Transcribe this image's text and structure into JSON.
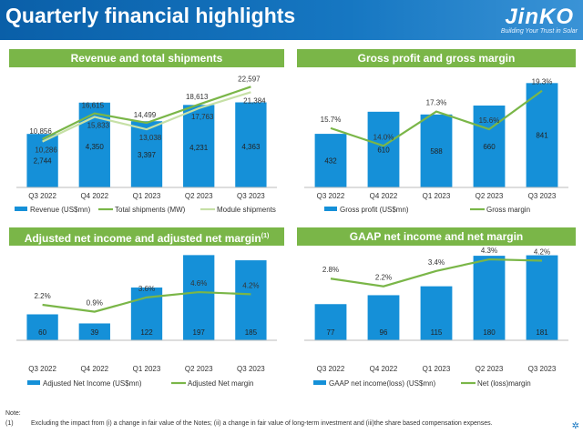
{
  "header": {
    "title": "Quarterly financial highlights",
    "logo": "JinKO",
    "slogan": "Building Your Trust in Solar"
  },
  "colors": {
    "bar": "#1590d8",
    "line": "#7ab648",
    "line_light": "#c6e0a6",
    "panel_title_bg": "#7ab648"
  },
  "note": {
    "heading": "Note:",
    "number": "(1)",
    "text": "Excluding the impact from (i) a change in fair value of the Notes; (ii) a change in fair value of long-term investment and (iii)the share based compensation expenses."
  },
  "chart_data": [
    {
      "type": "bar",
      "title": "Revenue and total shipments",
      "categories": [
        "Q3 2022",
        "Q4 2022",
        "Q1 2023",
        "Q2 2023",
        "Q3 2023"
      ],
      "series": [
        {
          "name": "Revenue (US$mn)",
          "kind": "bar",
          "values": [
            2744,
            4350,
            3397,
            4231,
            4363
          ]
        },
        {
          "name": "Total shipments (MW)",
          "kind": "line",
          "values": [
            10856,
            16615,
            14499,
            18613,
            22597
          ]
        },
        {
          "name": "Module shipments",
          "kind": "line",
          "values": [
            10286,
            15833,
            13038,
            17763,
            21384
          ]
        }
      ]
    },
    {
      "type": "bar",
      "title": "Gross profit and gross margin",
      "categories": [
        "Q3 2022",
        "Q4 2022",
        "Q1 2023",
        "Q2 2023",
        "Q3 2023"
      ],
      "series": [
        {
          "name": "Gross profit (US$mn)",
          "kind": "bar",
          "values": [
            432,
            610,
            588,
            660,
            841
          ]
        },
        {
          "name": "Gross margin",
          "kind": "line",
          "values": [
            15.7,
            14.0,
            17.3,
            15.6,
            19.3
          ],
          "labels": [
            "15.7%",
            "14.0%",
            "17.3%",
            "15.6%",
            "19.3%"
          ]
        }
      ]
    },
    {
      "type": "bar",
      "title": "Adjusted net income and adjusted net margin",
      "title_sup": "(1)",
      "categories": [
        "Q3 2022",
        "Q4 2022",
        "Q1 2023",
        "Q2 2023",
        "Q3 2023"
      ],
      "series": [
        {
          "name": "Adjusted Net Income (US$mn)",
          "kind": "bar",
          "values": [
            60,
            39,
            122,
            197,
            185
          ]
        },
        {
          "name": "Adjusted Net margin",
          "kind": "line",
          "values": [
            2.2,
            0.9,
            3.6,
            4.6,
            4.2
          ],
          "labels": [
            "2.2%",
            "0.9%",
            "3.6%",
            "4.6%",
            "4.2%"
          ]
        }
      ]
    },
    {
      "type": "bar",
      "title": "GAAP net income and net margin",
      "categories": [
        "Q3 2022",
        "Q4 2022",
        "Q1 2023",
        "Q2 2023",
        "Q3 2023"
      ],
      "series": [
        {
          "name": "GAAP net income(loss) (US$mn)",
          "kind": "bar",
          "values": [
            77,
            96,
            115,
            180,
            181
          ]
        },
        {
          "name": "Net (loss)margin",
          "kind": "line",
          "values": [
            2.8,
            2.2,
            3.4,
            4.3,
            4.2
          ],
          "labels": [
            "2.8%",
            "2.2%",
            "3.4%",
            "4.3%",
            "4.2%"
          ]
        }
      ]
    }
  ]
}
